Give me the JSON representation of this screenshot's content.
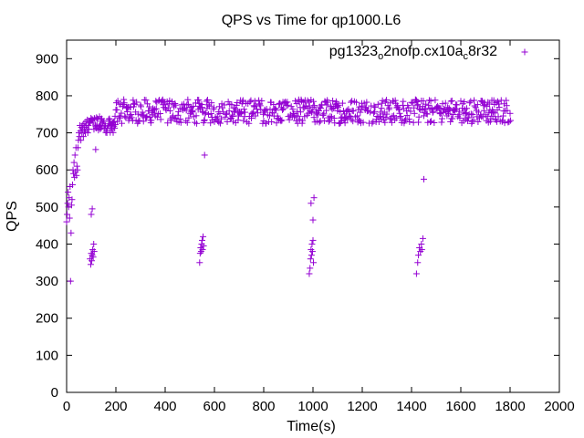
{
  "chart_data": {
    "type": "scatter",
    "title": "QPS vs Time for qp1000.L6",
    "xlabel": "Time(s)",
    "ylabel": "QPS",
    "xlim": [
      0,
      2000
    ],
    "ylim": [
      0,
      950
    ],
    "xticks": [
      0,
      200,
      400,
      600,
      800,
      1000,
      1200,
      1400,
      1600,
      1800,
      2000
    ],
    "yticks": [
      0,
      100,
      200,
      300,
      400,
      500,
      600,
      700,
      800,
      900
    ],
    "grid": false,
    "legend_position": "top-right",
    "marker": "+",
    "series": [
      {
        "name": "pg1323_o2nofp.cx10a_c8r32",
        "legend": {
          "base": "pg1323",
          "sub1": "o",
          "mid": "2nofp.cx10a",
          "sub2": "c",
          "tail": "8r32"
        },
        "color": "#9400d3",
        "points": [
          [
            0,
            460
          ],
          [
            2,
            480
          ],
          [
            4,
            510
          ],
          [
            6,
            540
          ],
          [
            8,
            500
          ],
          [
            10,
            525
          ],
          [
            12,
            470
          ],
          [
            14,
            555
          ],
          [
            16,
            300
          ],
          [
            18,
            430
          ],
          [
            20,
            505
          ],
          [
            22,
            520
          ],
          [
            24,
            560
          ],
          [
            26,
            600
          ],
          [
            28,
            590
          ],
          [
            30,
            620
          ],
          [
            32,
            580
          ],
          [
            34,
            640
          ],
          [
            36,
            595
          ],
          [
            38,
            660
          ],
          [
            40,
            585
          ],
          [
            42,
            610
          ],
          [
            44,
            600
          ],
          [
            46,
            660
          ],
          [
            48,
            680
          ],
          [
            50,
            700
          ],
          [
            52,
            690
          ],
          [
            54,
            720
          ],
          [
            56,
            705
          ],
          [
            58,
            680
          ],
          [
            60,
            715
          ],
          [
            62,
            700
          ],
          [
            64,
            720
          ],
          [
            66,
            710
          ],
          [
            68,
            690
          ],
          [
            70,
            725
          ],
          [
            72,
            705
          ],
          [
            74,
            715
          ],
          [
            76,
            700
          ],
          [
            78,
            730
          ],
          [
            80,
            720
          ],
          [
            82,
            710
          ],
          [
            84,
            735
          ],
          [
            86,
            700
          ],
          [
            88,
            720
          ],
          [
            90,
            710
          ],
          [
            95,
            360
          ],
          [
            98,
            345
          ],
          [
            100,
            375
          ],
          [
            102,
            355
          ],
          [
            104,
            370
          ],
          [
            106,
            385
          ],
          [
            108,
            365
          ],
          [
            110,
            400
          ],
          [
            112,
            380
          ],
          [
            100,
            480
          ],
          [
            104,
            495
          ],
          [
            118,
            655
          ],
          [
            540,
            350
          ],
          [
            542,
            375
          ],
          [
            544,
            390
          ],
          [
            546,
            380
          ],
          [
            548,
            400
          ],
          [
            550,
            410
          ],
          [
            552,
            385
          ],
          [
            554,
            420
          ],
          [
            556,
            395
          ],
          [
            560,
            640
          ],
          [
            985,
            320
          ],
          [
            988,
            335
          ],
          [
            990,
            360
          ],
          [
            992,
            385
          ],
          [
            994,
            370
          ],
          [
            996,
            400
          ],
          [
            998,
            380
          ],
          [
            1000,
            410
          ],
          [
            1002,
            350
          ],
          [
            992,
            510
          ],
          [
            1000,
            465
          ],
          [
            1004,
            525
          ],
          [
            1420,
            320
          ],
          [
            1425,
            350
          ],
          [
            1428,
            370
          ],
          [
            1432,
            390
          ],
          [
            1436,
            380
          ],
          [
            1440,
            400
          ],
          [
            1442,
            385
          ],
          [
            1446,
            415
          ],
          [
            1450,
            575
          ]
        ]
      }
    ]
  }
}
